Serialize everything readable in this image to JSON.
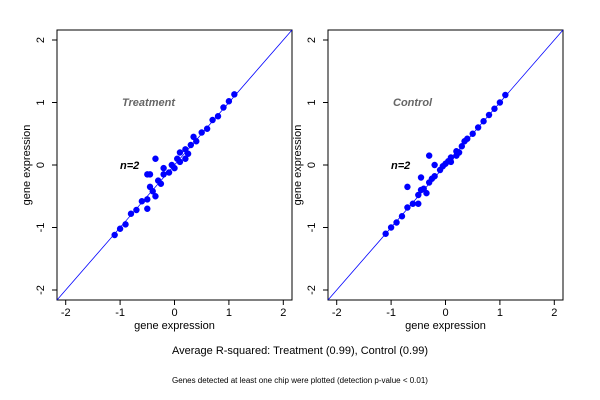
{
  "chart_data": [
    {
      "type": "scatter",
      "title": "Treatment",
      "annotation": "n=2",
      "xlabel": "gene expression",
      "ylabel": "gene expression",
      "xlim": [
        -2.16,
        2.16
      ],
      "ylim": [
        -2.16,
        2.16
      ],
      "xticks": [
        -2,
        -1,
        0,
        1,
        2
      ],
      "yticks": [
        -2,
        -1,
        0,
        1,
        2
      ],
      "diagonal": true,
      "diagonal_color": "#0000ff",
      "series": [
        {
          "color": "#0000ff",
          "x": [
            -1.1,
            -1.0,
            -0.9,
            -0.8,
            -0.7,
            -0.6,
            -0.5,
            -0.45,
            -0.4,
            -0.3,
            -0.25,
            -0.2,
            -0.1,
            -0.05,
            0,
            0.05,
            0.1,
            0.2,
            0.25,
            0.3,
            0.4,
            0.5,
            0.6,
            0.7,
            0.8,
            0.9,
            1.0,
            1.1,
            -0.45,
            -0.35,
            -0.2,
            0.2,
            0.35,
            -0.5,
            0.1,
            -0.35,
            -0.5
          ],
          "y": [
            -1.12,
            -1.02,
            -0.95,
            -0.78,
            -0.72,
            -0.58,
            -0.55,
            -0.35,
            -0.42,
            -0.25,
            -0.3,
            -0.15,
            -0.12,
            0,
            -0.05,
            0.1,
            0.05,
            0.25,
            0.18,
            0.32,
            0.38,
            0.52,
            0.58,
            0.72,
            0.78,
            0.92,
            1.02,
            1.13,
            -0.15,
            -0.5,
            -0.05,
            0.1,
            0.45,
            -0.7,
            0.2,
            0.1,
            -0.15
          ]
        }
      ]
    },
    {
      "type": "scatter",
      "title": "Control",
      "annotation": "n=2",
      "xlabel": "gene expression",
      "ylabel": "gene expression",
      "xlim": [
        -2.16,
        2.16
      ],
      "ylim": [
        -2.16,
        2.16
      ],
      "xticks": [
        -2,
        -1,
        0,
        1,
        2
      ],
      "yticks": [
        -2,
        -1,
        0,
        1,
        2
      ],
      "diagonal": true,
      "diagonal_color": "#0000ff",
      "series": [
        {
          "color": "#0000ff",
          "x": [
            -1.1,
            -1.0,
            -0.9,
            -0.8,
            -0.7,
            -0.6,
            -0.5,
            -0.45,
            -0.4,
            -0.3,
            -0.25,
            -0.2,
            -0.1,
            -0.05,
            0,
            0.05,
            0.1,
            0.2,
            0.25,
            0.3,
            0.4,
            0.5,
            0.6,
            0.7,
            0.8,
            0.9,
            1.0,
            1.1,
            -0.45,
            -0.35,
            -0.2,
            0.2,
            0.35,
            -0.5,
            0.1,
            -0.3,
            -0.7
          ],
          "y": [
            -1.1,
            -1.0,
            -0.92,
            -0.82,
            -0.68,
            -0.62,
            -0.48,
            -0.4,
            -0.38,
            -0.28,
            -0.22,
            -0.18,
            -0.08,
            -0.02,
            0.02,
            0.06,
            0.12,
            0.22,
            0.2,
            0.3,
            0.42,
            0.5,
            0.6,
            0.7,
            0.8,
            0.9,
            1.0,
            1.12,
            -0.2,
            -0.45,
            0.0,
            0.15,
            0.38,
            -0.62,
            0.05,
            0.15,
            -0.35
          ]
        }
      ]
    }
  ],
  "caption": "Average R-squared: Treatment (0.99), Control (0.99)",
  "footnote": "Genes detected at least one chip were plotted (detection p-value < 0.01)"
}
